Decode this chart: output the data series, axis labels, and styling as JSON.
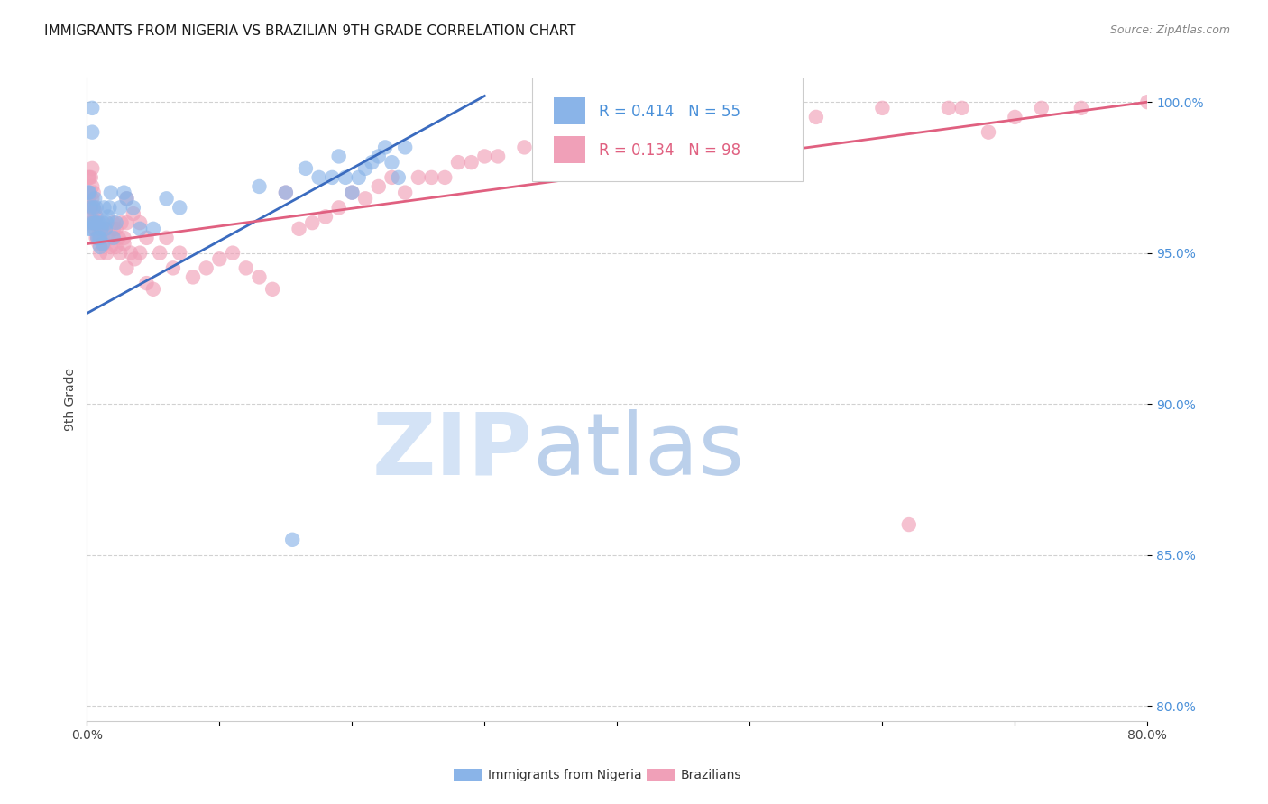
{
  "title": "IMMIGRANTS FROM NIGERIA VS BRAZILIAN 9TH GRADE CORRELATION CHART",
  "source": "Source: ZipAtlas.com",
  "ylabel": "9th Grade",
  "legend_label_blue": "Immigrants from Nigeria",
  "legend_label_pink": "Brazilians",
  "r_blue": 0.414,
  "n_blue": 55,
  "r_pink": 0.134,
  "n_pink": 98,
  "xlim": [
    0.0,
    0.8
  ],
  "ylim": [
    0.795,
    1.008
  ],
  "yticks": [
    0.8,
    0.85,
    0.9,
    0.95,
    1.0
  ],
  "ytick_labels": [
    "80.0%",
    "85.0%",
    "90.0%",
    "95.0%",
    "100.0%"
  ],
  "color_blue": "#8ab4e8",
  "color_pink": "#f0a0b8",
  "line_color_blue": "#3a6bbf",
  "line_color_pink": "#e06080",
  "background_color": "#ffffff",
  "title_fontsize": 11,
  "blue_trend_x": [
    0.0,
    0.3
  ],
  "blue_trend_y": [
    0.93,
    1.002
  ],
  "pink_trend_x": [
    0.0,
    0.8
  ],
  "pink_trend_y": [
    0.953,
    1.0
  ],
  "blue_scatter_x": [
    0.001,
    0.001,
    0.002,
    0.002,
    0.003,
    0.003,
    0.004,
    0.004,
    0.005,
    0.005,
    0.006,
    0.006,
    0.007,
    0.007,
    0.008,
    0.009,
    0.009,
    0.01,
    0.01,
    0.011,
    0.012,
    0.012,
    0.013,
    0.014,
    0.015,
    0.016,
    0.017,
    0.018,
    0.02,
    0.022,
    0.025,
    0.028,
    0.03,
    0.035,
    0.04,
    0.05,
    0.06,
    0.07,
    0.13,
    0.15,
    0.165,
    0.175,
    0.185,
    0.19,
    0.195,
    0.2,
    0.205,
    0.21,
    0.215,
    0.22,
    0.225,
    0.23,
    0.235,
    0.24,
    0.155
  ],
  "blue_scatter_y": [
    0.958,
    0.97,
    0.96,
    0.97,
    0.958,
    0.965,
    0.99,
    0.998,
    0.96,
    0.965,
    0.96,
    0.968,
    0.96,
    0.965,
    0.955,
    0.955,
    0.96,
    0.955,
    0.952,
    0.958,
    0.953,
    0.96,
    0.965,
    0.958,
    0.96,
    0.962,
    0.965,
    0.97,
    0.955,
    0.96,
    0.965,
    0.97,
    0.968,
    0.965,
    0.958,
    0.958,
    0.968,
    0.965,
    0.972,
    0.97,
    0.978,
    0.975,
    0.975,
    0.982,
    0.975,
    0.97,
    0.975,
    0.978,
    0.98,
    0.982,
    0.985,
    0.98,
    0.975,
    0.985,
    0.855
  ],
  "pink_scatter_x": [
    0.001,
    0.001,
    0.002,
    0.002,
    0.002,
    0.003,
    0.003,
    0.003,
    0.004,
    0.004,
    0.004,
    0.005,
    0.005,
    0.005,
    0.006,
    0.006,
    0.007,
    0.007,
    0.008,
    0.008,
    0.009,
    0.009,
    0.01,
    0.01,
    0.011,
    0.012,
    0.013,
    0.014,
    0.015,
    0.016,
    0.017,
    0.018,
    0.02,
    0.022,
    0.025,
    0.028,
    0.03,
    0.033,
    0.036,
    0.04,
    0.045,
    0.05,
    0.055,
    0.06,
    0.065,
    0.07,
    0.08,
    0.09,
    0.1,
    0.11,
    0.12,
    0.13,
    0.14,
    0.15,
    0.16,
    0.17,
    0.18,
    0.19,
    0.2,
    0.21,
    0.22,
    0.23,
    0.24,
    0.25,
    0.26,
    0.27,
    0.02,
    0.03,
    0.03,
    0.035,
    0.04,
    0.045,
    0.28,
    0.3,
    0.35,
    0.38,
    0.4,
    0.45,
    0.5,
    0.55,
    0.6,
    0.65,
    0.7,
    0.75,
    0.8,
    0.29,
    0.31,
    0.33,
    0.36,
    0.37,
    0.022,
    0.024,
    0.026,
    0.028,
    0.62,
    0.66,
    0.68,
    0.72
  ],
  "pink_scatter_y": [
    0.968,
    0.975,
    0.962,
    0.97,
    0.975,
    0.96,
    0.965,
    0.975,
    0.968,
    0.972,
    0.978,
    0.96,
    0.965,
    0.97,
    0.958,
    0.964,
    0.955,
    0.962,
    0.955,
    0.96,
    0.953,
    0.958,
    0.95,
    0.955,
    0.958,
    0.955,
    0.953,
    0.958,
    0.95,
    0.955,
    0.955,
    0.952,
    0.96,
    0.958,
    0.95,
    0.953,
    0.945,
    0.95,
    0.948,
    0.95,
    0.94,
    0.938,
    0.95,
    0.955,
    0.945,
    0.95,
    0.942,
    0.945,
    0.948,
    0.95,
    0.945,
    0.942,
    0.938,
    0.97,
    0.958,
    0.96,
    0.962,
    0.965,
    0.97,
    0.968,
    0.972,
    0.975,
    0.97,
    0.975,
    0.975,
    0.975,
    0.958,
    0.968,
    0.96,
    0.963,
    0.96,
    0.955,
    0.98,
    0.982,
    0.985,
    0.985,
    0.988,
    0.99,
    0.992,
    0.995,
    0.998,
    0.998,
    0.995,
    0.998,
    1.0,
    0.98,
    0.982,
    0.985,
    0.988,
    0.99,
    0.952,
    0.955,
    0.96,
    0.955,
    0.86,
    0.998,
    0.99,
    0.998
  ]
}
